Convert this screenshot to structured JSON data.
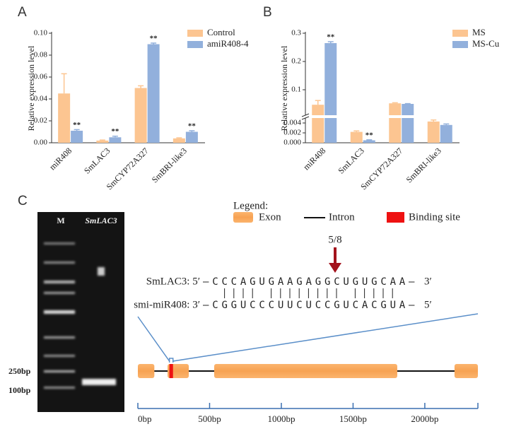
{
  "chart_data": [
    {
      "type": "bar",
      "panel": "A",
      "ylabel": "Relative expression level",
      "categories": [
        "miR408",
        "SmLAC3",
        "SmCYP72A327",
        "SmBRI-like3"
      ],
      "series": [
        {
          "name": "Control",
          "color": "#fcc591",
          "values": [
            0.045,
            0.002,
            0.05,
            0.004
          ],
          "errors": [
            0.018,
            0.0005,
            0.002,
            0.0005
          ]
        },
        {
          "name": "amiR408-4",
          "color": "#92b0dc",
          "values": [
            0.011,
            0.005,
            0.09,
            0.01
          ],
          "errors": [
            0.001,
            0.001,
            0.001,
            0.001
          ],
          "significance": [
            "**",
            "**",
            "**",
            "**"
          ]
        }
      ],
      "ylim": [
        0,
        0.1
      ],
      "yticks": [
        {
          "value": 0,
          "label": "0.00"
        },
        {
          "value": 0.02,
          "label": "0.02"
        },
        {
          "value": 0.04,
          "label": "0.04"
        },
        {
          "value": 0.06,
          "label": "0.06"
        },
        {
          "value": 0.08,
          "label": "0.08"
        },
        {
          "value": 0.1,
          "label": "0.10"
        }
      ],
      "legend": "upper right"
    },
    {
      "type": "bar",
      "panel": "B",
      "ylabel": "Relative expression level",
      "categories": [
        "miR408",
        "SmLAC3",
        "SmCYP72A327",
        "SmBRI-like3"
      ],
      "series": [
        {
          "name": "MS",
          "color": "#fcc591",
          "values": [
            0.047,
            0.0022,
            0.052,
            0.0043
          ],
          "errors": [
            0.015,
            0.0002,
            0.002,
            0.0003
          ]
        },
        {
          "name": "MS-Cu",
          "color": "#92b0dc",
          "values": [
            0.265,
            0.0005,
            0.05,
            0.0036
          ],
          "errors": [
            0.005,
            0.0001,
            0.001,
            0.0002
          ],
          "significance": [
            "**",
            "**",
            null,
            null
          ]
        }
      ],
      "ylim": [
        0,
        0.3
      ],
      "axis_break": [
        0.005,
        0.01
      ],
      "yticks": [
        {
          "value": 0,
          "label": "0.000"
        },
        0.002,
        0.004,
        0.1,
        0.2,
        0.3
      ],
      "legend": "upper right"
    }
  ],
  "panel_c": {
    "panel": "C",
    "gel": {
      "lanes": [
        "M",
        "SmLAC3"
      ],
      "markers": [
        "250bp",
        "100bp"
      ]
    },
    "legend": {
      "title": "Legend:",
      "items": [
        "Exon",
        "Intron",
        "Binding site"
      ]
    },
    "cleavage": "5/8",
    "target": {
      "label": "SmLAC3: 5′",
      "sequence": "–CCCAGUGAAGAGGCUGUGCAA–",
      "end": "3′"
    },
    "mirna": {
      "label": "smi-miR408: 3′",
      "sequence": "–CGGUCCCUUCUCCGUCACGUA–",
      "end": "5′"
    },
    "gene": {
      "exons": [
        [
          0,
          115
        ],
        [
          207,
          355
        ],
        [
          532,
          1808
        ],
        [
          2207,
          2370
        ]
      ],
      "binding_site": [
        220,
        245
      ],
      "xlim": [
        0,
        2370
      ],
      "xticks": [
        {
          "value": 0,
          "label": "0bp"
        },
        {
          "value": 500,
          "label": "500bp"
        },
        {
          "value": 1000,
          "label": "1000bp"
        },
        {
          "value": 1500,
          "label": "1500bp"
        },
        {
          "value": 2000,
          "label": "2000bp"
        }
      ]
    }
  }
}
